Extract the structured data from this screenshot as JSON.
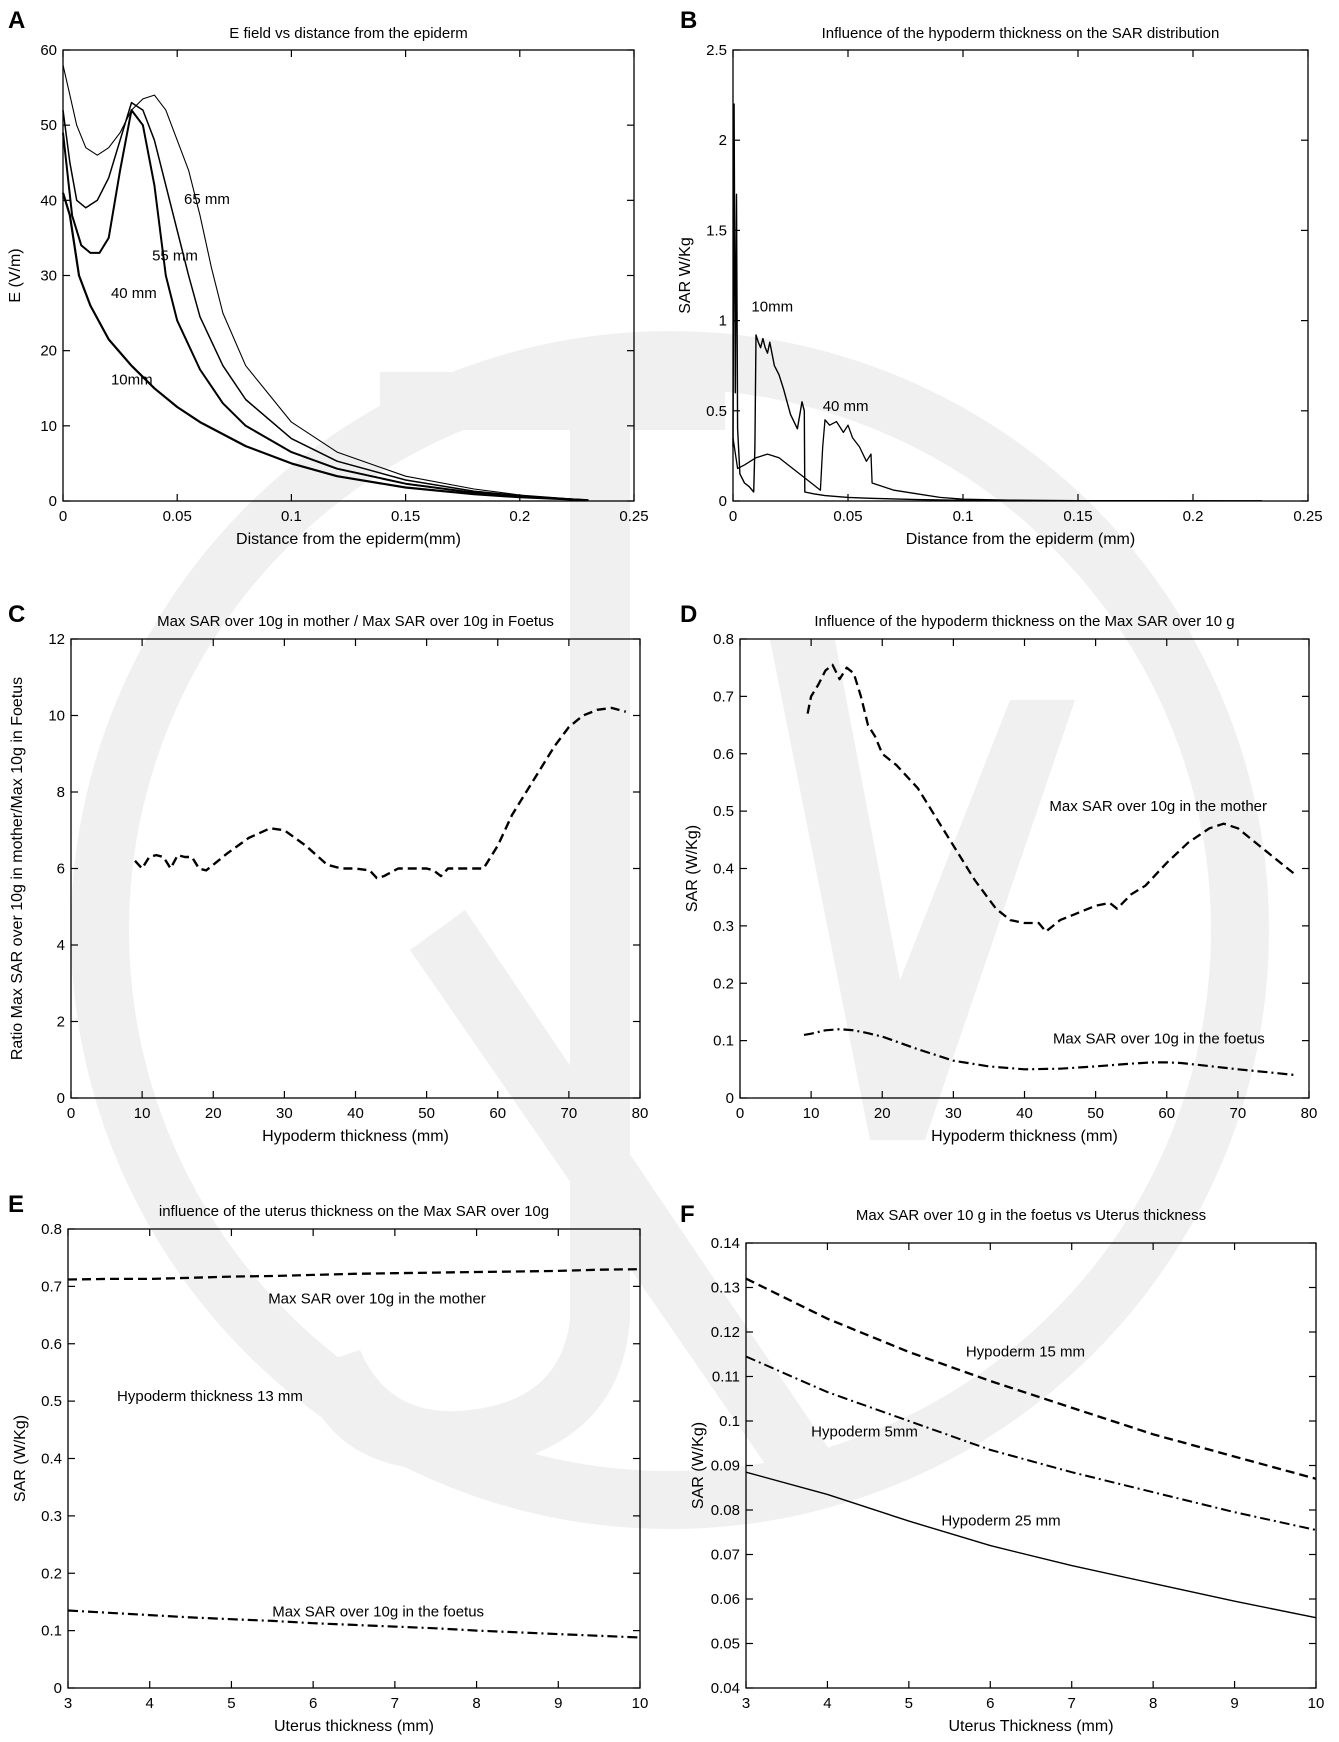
{
  "chart_data": [
    {
      "panel": "A",
      "type": "line",
      "title": "E field vs distance from the epiderm",
      "xlabel": "Distance from the epiderm(mm)",
      "ylabel": "E (V/m)",
      "xlim": [
        0,
        0.25
      ],
      "ylim": [
        0,
        60
      ],
      "xticks": [
        "0",
        "0.05",
        "0.1",
        "0.15",
        "0.2",
        "0.25"
      ],
      "yticks": [
        "0",
        "10",
        "20",
        "30",
        "40",
        "50",
        "60"
      ],
      "grid": false,
      "annotations": [
        {
          "text": "65 mm",
          "x": 0.053,
          "y": 39.5
        },
        {
          "text": "55 mm",
          "x": 0.039,
          "y": 32
        },
        {
          "text": "40 mm",
          "x": 0.021,
          "y": 27
        },
        {
          "text": "10mm",
          "x": 0.021,
          "y": 15.5
        }
      ],
      "series": [
        {
          "name": "10mm",
          "dash": "",
          "width": 2.2,
          "x": [
            0,
            0.003,
            0.007,
            0.012,
            0.02,
            0.03,
            0.04,
            0.05,
            0.06,
            0.08,
            0.1,
            0.12,
            0.15,
            0.18,
            0.2,
            0.23
          ],
          "y": [
            41,
            38,
            30,
            26,
            21.5,
            18,
            15,
            12.5,
            10.5,
            7.3,
            5,
            3.3,
            1.8,
            0.9,
            0.5,
            0.1
          ]
        },
        {
          "name": "40 mm",
          "dash": "",
          "width": 2.0,
          "x": [
            0,
            0.004,
            0.008,
            0.012,
            0.016,
            0.02,
            0.025,
            0.03,
            0.035,
            0.04,
            0.045,
            0.05,
            0.06,
            0.07,
            0.08,
            0.1,
            0.12,
            0.15,
            0.18,
            0.2,
            0.23
          ],
          "y": [
            49,
            38,
            34,
            33,
            33,
            35,
            44,
            52,
            50,
            42,
            30,
            24,
            17.5,
            13,
            10,
            6.5,
            4.3,
            2.3,
            1.1,
            0.6,
            0.1
          ]
        },
        {
          "name": "55 mm",
          "dash": "",
          "width": 1.5,
          "x": [
            0,
            0.003,
            0.006,
            0.01,
            0.015,
            0.02,
            0.025,
            0.03,
            0.035,
            0.04,
            0.045,
            0.05,
            0.055,
            0.06,
            0.07,
            0.08,
            0.1,
            0.12,
            0.15,
            0.18,
            0.2,
            0.23
          ],
          "y": [
            52,
            45,
            40,
            39,
            40,
            43,
            48,
            53,
            52,
            48,
            42,
            36,
            30,
            24.5,
            18,
            13.5,
            8.3,
            5.3,
            2.8,
            1.3,
            0.7,
            0.1
          ]
        },
        {
          "name": "65 mm",
          "dash": "",
          "width": 1.1,
          "x": [
            0,
            0.003,
            0.006,
            0.01,
            0.015,
            0.02,
            0.025,
            0.03,
            0.035,
            0.04,
            0.045,
            0.05,
            0.055,
            0.06,
            0.065,
            0.07,
            0.08,
            0.1,
            0.12,
            0.15,
            0.18,
            0.2,
            0.23
          ],
          "y": [
            58,
            54,
            50,
            47,
            46,
            47,
            49,
            52,
            53.5,
            54,
            52,
            48,
            44,
            38,
            31,
            25,
            18,
            10.5,
            6.5,
            3.3,
            1.6,
            0.8,
            0.1
          ]
        }
      ]
    },
    {
      "panel": "B",
      "type": "line",
      "title": "Influence of the hypoderm thickness on the SAR distribution",
      "xlabel": "Distance from the epiderm (mm)",
      "ylabel": "SAR W/Kg",
      "xlim": [
        0,
        0.25
      ],
      "ylim": [
        0,
        2.5
      ],
      "xticks": [
        "0",
        "0.05",
        "0.1",
        "0.15",
        "0.2",
        "0.25"
      ],
      "yticks": [
        "0",
        "0.5",
        "1",
        "1.5",
        "2",
        "2.5"
      ],
      "grid": false,
      "annotations": [
        {
          "text": "10mm",
          "x": 0.008,
          "y": 1.05
        },
        {
          "text": "40 mm",
          "x": 0.039,
          "y": 0.5
        }
      ],
      "series": [
        {
          "name": "10mm",
          "dash": "",
          "width": 1.4,
          "x": [
            0,
            0.0005,
            0.001,
            0.0015,
            0.002,
            0.003,
            0.005,
            0.007,
            0.009,
            0.0095,
            0.01,
            0.011,
            0.012,
            0.013,
            0.014,
            0.015,
            0.016,
            0.018,
            0.02,
            0.022,
            0.025,
            0.028,
            0.03,
            0.031,
            0.0312,
            0.035,
            0.04,
            0.05,
            0.06,
            0.08,
            0.1,
            0.12
          ],
          "y": [
            0.3,
            2.2,
            0.6,
            1.7,
            0.4,
            0.15,
            0.1,
            0.08,
            0.05,
            0.3,
            0.92,
            0.88,
            0.85,
            0.9,
            0.85,
            0.82,
            0.88,
            0.75,
            0.7,
            0.62,
            0.48,
            0.4,
            0.55,
            0.5,
            0.05,
            0.04,
            0.03,
            0.02,
            0.015,
            0.008,
            0.004,
            0.002
          ]
        },
        {
          "name": "40 mm",
          "dash": "",
          "width": 1.3,
          "x": [
            0,
            0.002,
            0.005,
            0.01,
            0.015,
            0.02,
            0.025,
            0.03,
            0.035,
            0.038,
            0.039,
            0.04,
            0.042,
            0.045,
            0.048,
            0.05,
            0.052,
            0.055,
            0.058,
            0.06,
            0.0605,
            0.07,
            0.08,
            0.09,
            0.1,
            0.12,
            0.15,
            0.23
          ],
          "y": [
            0.35,
            0.18,
            0.2,
            0.24,
            0.26,
            0.24,
            0.19,
            0.14,
            0.09,
            0.06,
            0.3,
            0.45,
            0.42,
            0.44,
            0.38,
            0.42,
            0.35,
            0.3,
            0.22,
            0.26,
            0.1,
            0.06,
            0.04,
            0.02,
            0.01,
            0.005,
            0.002,
            0.001
          ]
        }
      ]
    },
    {
      "panel": "C",
      "type": "line",
      "title": "Max SAR over 10g in mother / Max SAR over 10g in Foetus",
      "xlabel": "Hypoderm thickness (mm)",
      "ylabel": "Ratio Max SAR over 10g in mother/Max 10g in Foetus",
      "xlim": [
        0,
        80
      ],
      "ylim": [
        0,
        12
      ],
      "xticks": [
        "0",
        "10",
        "20",
        "30",
        "40",
        "50",
        "60",
        "70",
        "80"
      ],
      "yticks": [
        "0",
        "2",
        "4",
        "6",
        "8",
        "10",
        "12"
      ],
      "grid": false,
      "annotations": [],
      "series": [
        {
          "name": "",
          "dash": "9,5",
          "width": 2.4,
          "x": [
            9,
            10,
            11,
            12,
            13,
            14,
            15,
            16,
            17,
            18,
            19,
            20,
            22,
            25,
            28,
            30,
            33,
            36,
            38,
            40,
            42,
            43,
            44,
            46,
            48,
            50,
            51,
            52,
            53,
            55,
            57,
            58,
            60,
            62,
            65,
            68,
            70,
            72,
            74,
            76,
            78
          ],
          "y": [
            6.2,
            6.0,
            6.3,
            6.35,
            6.3,
            6.0,
            6.35,
            6.3,
            6.3,
            6.0,
            5.95,
            6.1,
            6.4,
            6.8,
            7.05,
            7.0,
            6.6,
            6.1,
            6.0,
            6.0,
            5.95,
            5.75,
            5.8,
            6.0,
            6.0,
            6.0,
            5.95,
            5.8,
            6.0,
            6.0,
            6.0,
            6.0,
            6.6,
            7.4,
            8.3,
            9.2,
            9.7,
            10.0,
            10.15,
            10.2,
            10.1
          ]
        }
      ]
    },
    {
      "panel": "D",
      "type": "line",
      "title": "Influence of the hypoderm thickness on the Max SAR over 10 g",
      "xlabel": "Hypoderm thickness (mm)",
      "ylabel": "SAR (W/Kg)",
      "xlim": [
        0,
        80
      ],
      "ylim": [
        0,
        0.8
      ],
      "xticks": [
        "0",
        "10",
        "20",
        "30",
        "40",
        "50",
        "60",
        "70",
        "80"
      ],
      "yticks": [
        "0",
        "0.1",
        "0.2",
        "0.3",
        "0.4",
        "0.5",
        "0.6",
        "0.7",
        "0.8"
      ],
      "grid": false,
      "annotations": [
        {
          "text": "Max SAR over 10g in the mother",
          "x": 43.5,
          "y": 0.5
        },
        {
          "text": "Max SAR over 10g in the foetus",
          "x": 44,
          "y": 0.095
        }
      ],
      "series": [
        {
          "name": "Max SAR over 10g in the mother",
          "dash": "9,5",
          "width": 2.3,
          "x": [
            9.5,
            10,
            11,
            12,
            13,
            14,
            15,
            16,
            17,
            18,
            19,
            20,
            22,
            25,
            28,
            30,
            33,
            36,
            38,
            40,
            42,
            43,
            44,
            45,
            47,
            50,
            52,
            53,
            55,
            57,
            60,
            63,
            66,
            68,
            70,
            73,
            76,
            78
          ],
          "y": [
            0.67,
            0.7,
            0.72,
            0.745,
            0.755,
            0.73,
            0.75,
            0.74,
            0.7,
            0.65,
            0.63,
            0.6,
            0.58,
            0.54,
            0.48,
            0.44,
            0.38,
            0.33,
            0.31,
            0.305,
            0.305,
            0.29,
            0.3,
            0.31,
            0.32,
            0.335,
            0.34,
            0.33,
            0.355,
            0.37,
            0.41,
            0.445,
            0.47,
            0.478,
            0.47,
            0.44,
            0.41,
            0.39
          ]
        },
        {
          "name": "Max SAR over 10g in the foetus",
          "dash": "10,4,2,4",
          "width": 2.2,
          "x": [
            9,
            10,
            12,
            14,
            16,
            18,
            20,
            25,
            30,
            35,
            40,
            45,
            50,
            55,
            58,
            60,
            62,
            65,
            70,
            75,
            78
          ],
          "y": [
            0.11,
            0.112,
            0.118,
            0.12,
            0.118,
            0.113,
            0.107,
            0.085,
            0.065,
            0.055,
            0.05,
            0.051,
            0.055,
            0.06,
            0.062,
            0.062,
            0.061,
            0.057,
            0.05,
            0.044,
            0.04
          ]
        }
      ]
    },
    {
      "panel": "E",
      "type": "line",
      "title": "influence of the uterus thickness on the Max SAR over 10g",
      "xlabel": "Uterus thickness (mm)",
      "ylabel": "SAR (W/Kg)",
      "xlim": [
        3,
        10
      ],
      "ylim": [
        0,
        0.8
      ],
      "xticks": [
        "3",
        "4",
        "5",
        "6",
        "7",
        "8",
        "9",
        "10"
      ],
      "yticks": [
        "0",
        "0.1",
        "0.2",
        "0.3",
        "0.4",
        "0.5",
        "0.6",
        "0.7",
        "0.8"
      ],
      "grid": false,
      "annotations": [
        {
          "text": "Max SAR over 10g in the mother",
          "x": 5.45,
          "y": 0.67
        },
        {
          "text": "Hypoderm thickness 13 mm",
          "x": 3.6,
          "y": 0.5
        },
        {
          "text": "Max SAR over 10g in the foetus",
          "x": 5.5,
          "y": 0.125
        }
      ],
      "series": [
        {
          "name": "Max SAR over 10g in the mother",
          "dash": "9,5",
          "width": 2.3,
          "x": [
            3,
            3.5,
            4,
            4.5,
            5,
            5.5,
            6,
            6.5,
            7,
            7.5,
            8,
            8.5,
            9,
            9.5,
            10
          ],
          "y": [
            0.712,
            0.713,
            0.713,
            0.715,
            0.717,
            0.718,
            0.72,
            0.722,
            0.723,
            0.724,
            0.725,
            0.726,
            0.727,
            0.729,
            0.73
          ]
        },
        {
          "name": "Max SAR over 10g in the foetus",
          "dash": "10,4,2,4",
          "width": 2.2,
          "x": [
            3,
            3.5,
            4,
            4.5,
            5,
            5.5,
            6,
            6.5,
            7,
            7.5,
            8,
            8.5,
            9,
            9.5,
            10
          ],
          "y": [
            0.135,
            0.131,
            0.127,
            0.123,
            0.12,
            0.117,
            0.113,
            0.11,
            0.107,
            0.104,
            0.1,
            0.097,
            0.094,
            0.091,
            0.088
          ]
        }
      ]
    },
    {
      "panel": "F",
      "type": "line",
      "title": "Max SAR over 10 g in the foetus vs Uterus thickness",
      "xlabel": "Uterus Thickness (mm)",
      "ylabel": "SAR (W/Kg)",
      "xlim": [
        3,
        10
      ],
      "ylim": [
        0.04,
        0.14
      ],
      "xticks": [
        "3",
        "4",
        "5",
        "6",
        "7",
        "8",
        "9",
        "10"
      ],
      "yticks": [
        "0.04",
        "0.05",
        "0.06",
        "0.07",
        "0.08",
        "0.09",
        "0.1",
        "0.11",
        "0.12",
        "0.13",
        "0.14"
      ],
      "grid": false,
      "annotations": [
        {
          "text": "Hypoderm 15 mm",
          "x": 5.7,
          "y": 0.1145
        },
        {
          "text": "Hypoderm 5mm",
          "x": 3.8,
          "y": 0.0965
        },
        {
          "text": "Hypoderm 25 mm",
          "x": 5.4,
          "y": 0.0765
        }
      ],
      "series": [
        {
          "name": "Hypoderm 15 mm",
          "dash": "9,5",
          "width": 2.3,
          "x": [
            3,
            4,
            5,
            6,
            7,
            8,
            9,
            10
          ],
          "y": [
            0.132,
            0.123,
            0.1155,
            0.109,
            0.103,
            0.097,
            0.092,
            0.087
          ]
        },
        {
          "name": "Hypoderm 5mm",
          "dash": "10,4,2,4",
          "width": 2.0,
          "x": [
            3,
            4,
            5,
            6,
            7,
            8,
            9,
            10
          ],
          "y": [
            0.1145,
            0.1065,
            0.1,
            0.0935,
            0.0885,
            0.084,
            0.0795,
            0.0755
          ]
        },
        {
          "name": "Hypoderm 25 mm",
          "dash": "",
          "width": 1.4,
          "x": [
            3,
            4,
            5,
            6,
            7,
            8,
            9,
            10
          ],
          "y": [
            0.0885,
            0.0835,
            0.0775,
            0.072,
            0.0675,
            0.0635,
            0.0595,
            0.0558
          ]
        }
      ]
    }
  ]
}
